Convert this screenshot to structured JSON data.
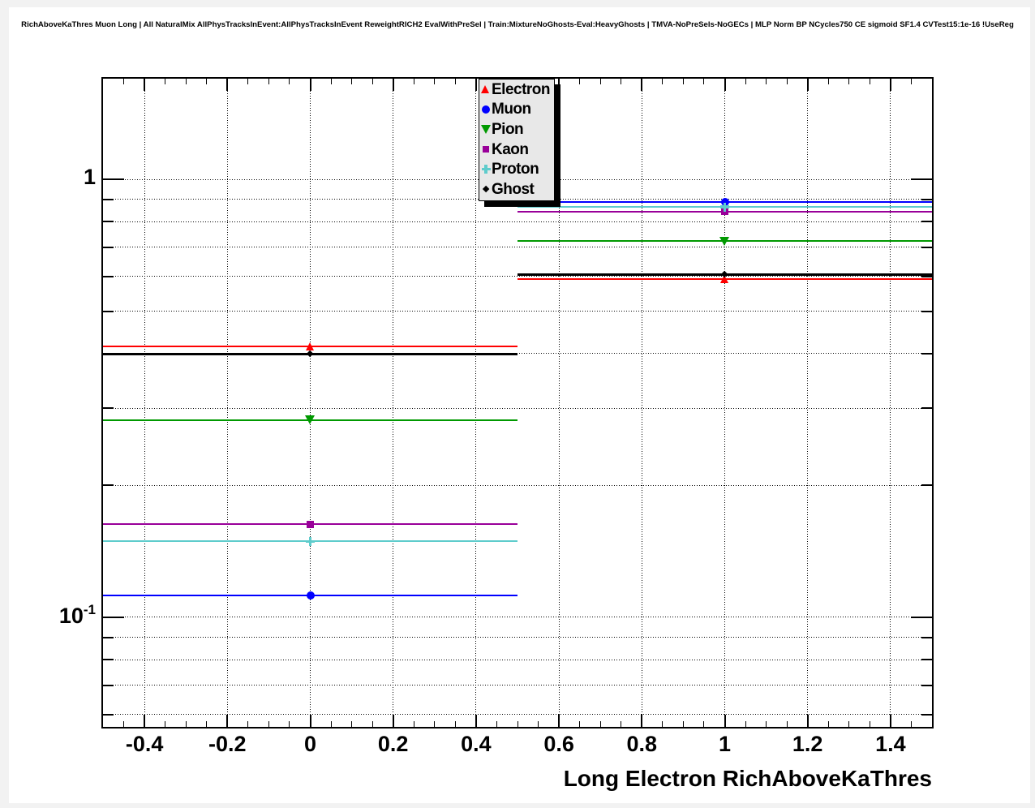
{
  "chart_data": {
    "type": "scatter",
    "title": "RichAboveKaThres Muon Long | All NaturalMix AllPhysTracksInEvent:AllPhysTracksInEvent ReweightRICH2 EvalWithPreSel | Train:MixtureNoGhosts-Eval:HeavyGhosts | TMVA-NoPreSels-NoGECs | MLP Norm BP NCycles750 CE sigmoid SF1.4 CVTest15:1e-16 !UseReg",
    "xlabel": "Long Electron RichAboveKaThres",
    "ylabel": "",
    "grid": true,
    "legend_position": "top-center",
    "x_axis": {
      "min": -0.5,
      "max": 1.5,
      "major_tick_step": 0.2,
      "minor_tick_step": 0.05,
      "tick_labels": [
        {
          "value": -0.4,
          "label": "-0.4"
        },
        {
          "value": -0.2,
          "label": "-0.2"
        },
        {
          "value": 0,
          "label": "0"
        },
        {
          "value": 0.2,
          "label": "0.2"
        },
        {
          "value": 0.4,
          "label": "0.4"
        },
        {
          "value": 0.6,
          "label": "0.6"
        },
        {
          "value": 0.8,
          "label": "0.8"
        },
        {
          "value": 1,
          "label": "1"
        },
        {
          "value": 1.2,
          "label": "1.2"
        },
        {
          "value": 1.4,
          "label": "1.4"
        }
      ]
    },
    "y_axis": {
      "scale": "log",
      "min": 0.0562,
      "max": 1.698,
      "decade_labels": [
        {
          "value": 1,
          "mantissa": "1",
          "exponent": ""
        },
        {
          "value": 0.1,
          "mantissa": "10",
          "exponent": "-1"
        }
      ],
      "sub_tick_values": [
        0.9,
        0.8,
        0.7,
        0.6,
        0.5,
        0.4,
        0.3,
        0.2,
        0.09,
        0.08,
        0.07,
        0.06
      ]
    },
    "series": [
      {
        "name": "Electron",
        "color": "#ff0000",
        "marker": "triangle-up",
        "marker_size": 10,
        "line_width": 2,
        "points": [
          {
            "x": 0,
            "y": 0.415,
            "xlow": -0.5,
            "xhigh": 0.5
          },
          {
            "x": 1,
            "y": 0.591,
            "xlow": 0.5,
            "xhigh": 1.5
          }
        ]
      },
      {
        "name": "Muon",
        "color": "#0000ff",
        "marker": "circle",
        "marker_size": 10,
        "line_width": 2,
        "points": [
          {
            "x": 0,
            "y": 0.112,
            "xlow": -0.5,
            "xhigh": 0.5
          },
          {
            "x": 1,
            "y": 0.887,
            "xlow": 0.5,
            "xhigh": 1.5
          }
        ]
      },
      {
        "name": "Pion",
        "color": "#009900",
        "marker": "triangle-down",
        "marker_size": 11,
        "line_width": 2,
        "points": [
          {
            "x": 0,
            "y": 0.282,
            "xlow": -0.5,
            "xhigh": 0.5
          },
          {
            "x": 1,
            "y": 0.722,
            "xlow": 0.5,
            "xhigh": 1.5
          }
        ]
      },
      {
        "name": "Kaon",
        "color": "#990099",
        "marker": "square",
        "marker_size": 10,
        "line_width": 2,
        "points": [
          {
            "x": 0,
            "y": 0.163,
            "xlow": -0.5,
            "xhigh": 0.5
          },
          {
            "x": 1,
            "y": 0.843,
            "xlow": 0.5,
            "xhigh": 1.5
          }
        ]
      },
      {
        "name": "Proton",
        "color": "#5ecccc",
        "marker": "cross",
        "marker_size": 11,
        "line_width": 2,
        "points": [
          {
            "x": 0,
            "y": 0.149,
            "xlow": -0.5,
            "xhigh": 0.5
          },
          {
            "x": 1,
            "y": 0.865,
            "xlow": 0.5,
            "xhigh": 1.5
          }
        ]
      },
      {
        "name": "Ghost",
        "color": "#000000",
        "marker": "diamond",
        "marker_size": 8,
        "line_width": 3,
        "points": [
          {
            "x": 0,
            "y": 0.399,
            "xlow": -0.5,
            "xhigh": 0.5
          },
          {
            "x": 1,
            "y": 0.607,
            "xlow": 0.5,
            "xhigh": 1.5
          }
        ]
      }
    ]
  }
}
